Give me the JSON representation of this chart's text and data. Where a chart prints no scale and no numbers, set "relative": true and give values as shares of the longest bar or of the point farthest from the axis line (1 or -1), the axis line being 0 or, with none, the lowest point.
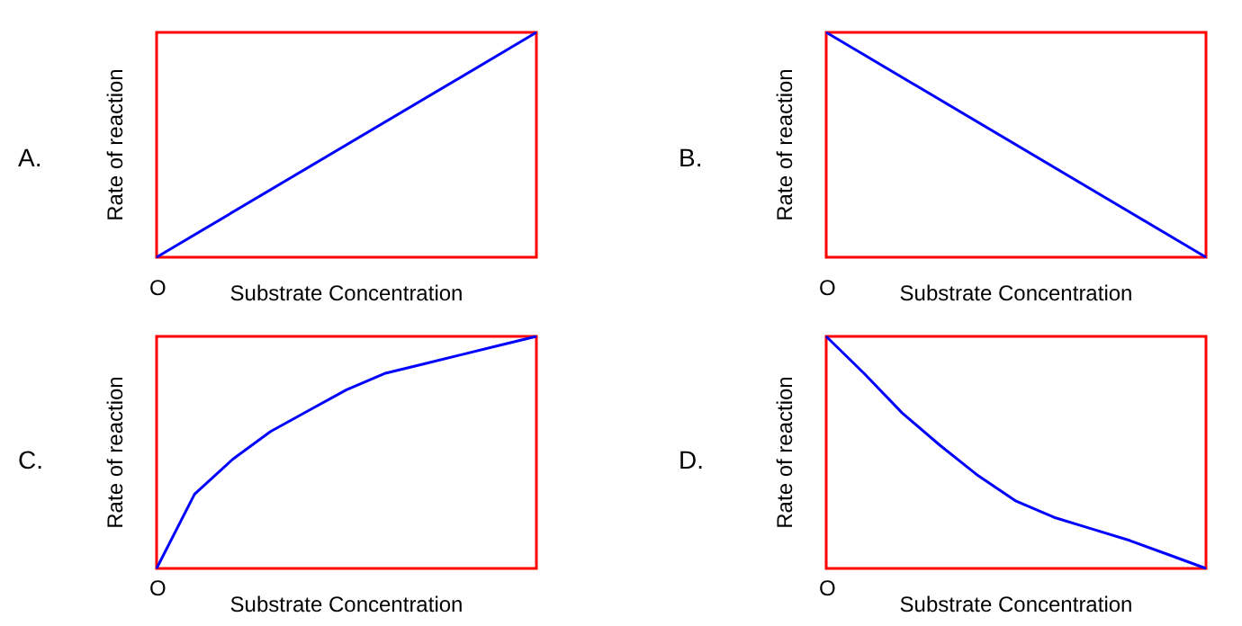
{
  "chart_data": [
    {
      "type": "line",
      "title": "A.",
      "xlabel": "Substrate Concentration",
      "ylabel": "Rate of reaction",
      "annotations": [
        "O"
      ],
      "relative": true,
      "marker": "none",
      "categories": [
        null,
        null
      ],
      "series": [
        {
          "color": "#0000ff",
          "values": [
            0,
            1
          ]
        }
      ]
    },
    {
      "type": "line",
      "title": "B.",
      "xlabel": "Substrate Concentration",
      "ylabel": "Rate of reaction",
      "annotations": [
        "O"
      ],
      "relative": true,
      "marker": "none",
      "categories": [
        null,
        null
      ],
      "series": [
        {
          "color": "#0000ff",
          "values": [
            1,
            0
          ]
        }
      ]
    },
    {
      "type": "line",
      "title": "C.",
      "xlabel": "Substrate Concentration",
      "ylabel": "Rate of reaction",
      "annotations": [
        "O"
      ],
      "relative": true,
      "marker": "none",
      "categories": [
        null,
        null,
        null,
        null,
        null,
        null,
        null,
        null,
        null,
        null,
        null
      ],
      "series": [
        {
          "color": "#0000ff",
          "values": [
            0,
            0.32,
            0.47,
            0.59,
            0.68,
            0.77,
            0.84,
            0.88,
            0.92,
            0.96,
            1
          ]
        }
      ]
    },
    {
      "type": "line",
      "title": "D.",
      "xlabel": "Substrate Concentration",
      "ylabel": "Rate of reaction",
      "annotations": [
        "O"
      ],
      "relative": true,
      "marker": "none",
      "categories": [
        null,
        null,
        null,
        null,
        null,
        null,
        null,
        null,
        null,
        null,
        null
      ],
      "series": [
        {
          "color": "#0000ff",
          "values": [
            1,
            0.84,
            0.67,
            0.53,
            0.4,
            0.29,
            0.22,
            0.17,
            0.12,
            0.06,
            0
          ]
        }
      ]
    }
  ]
}
